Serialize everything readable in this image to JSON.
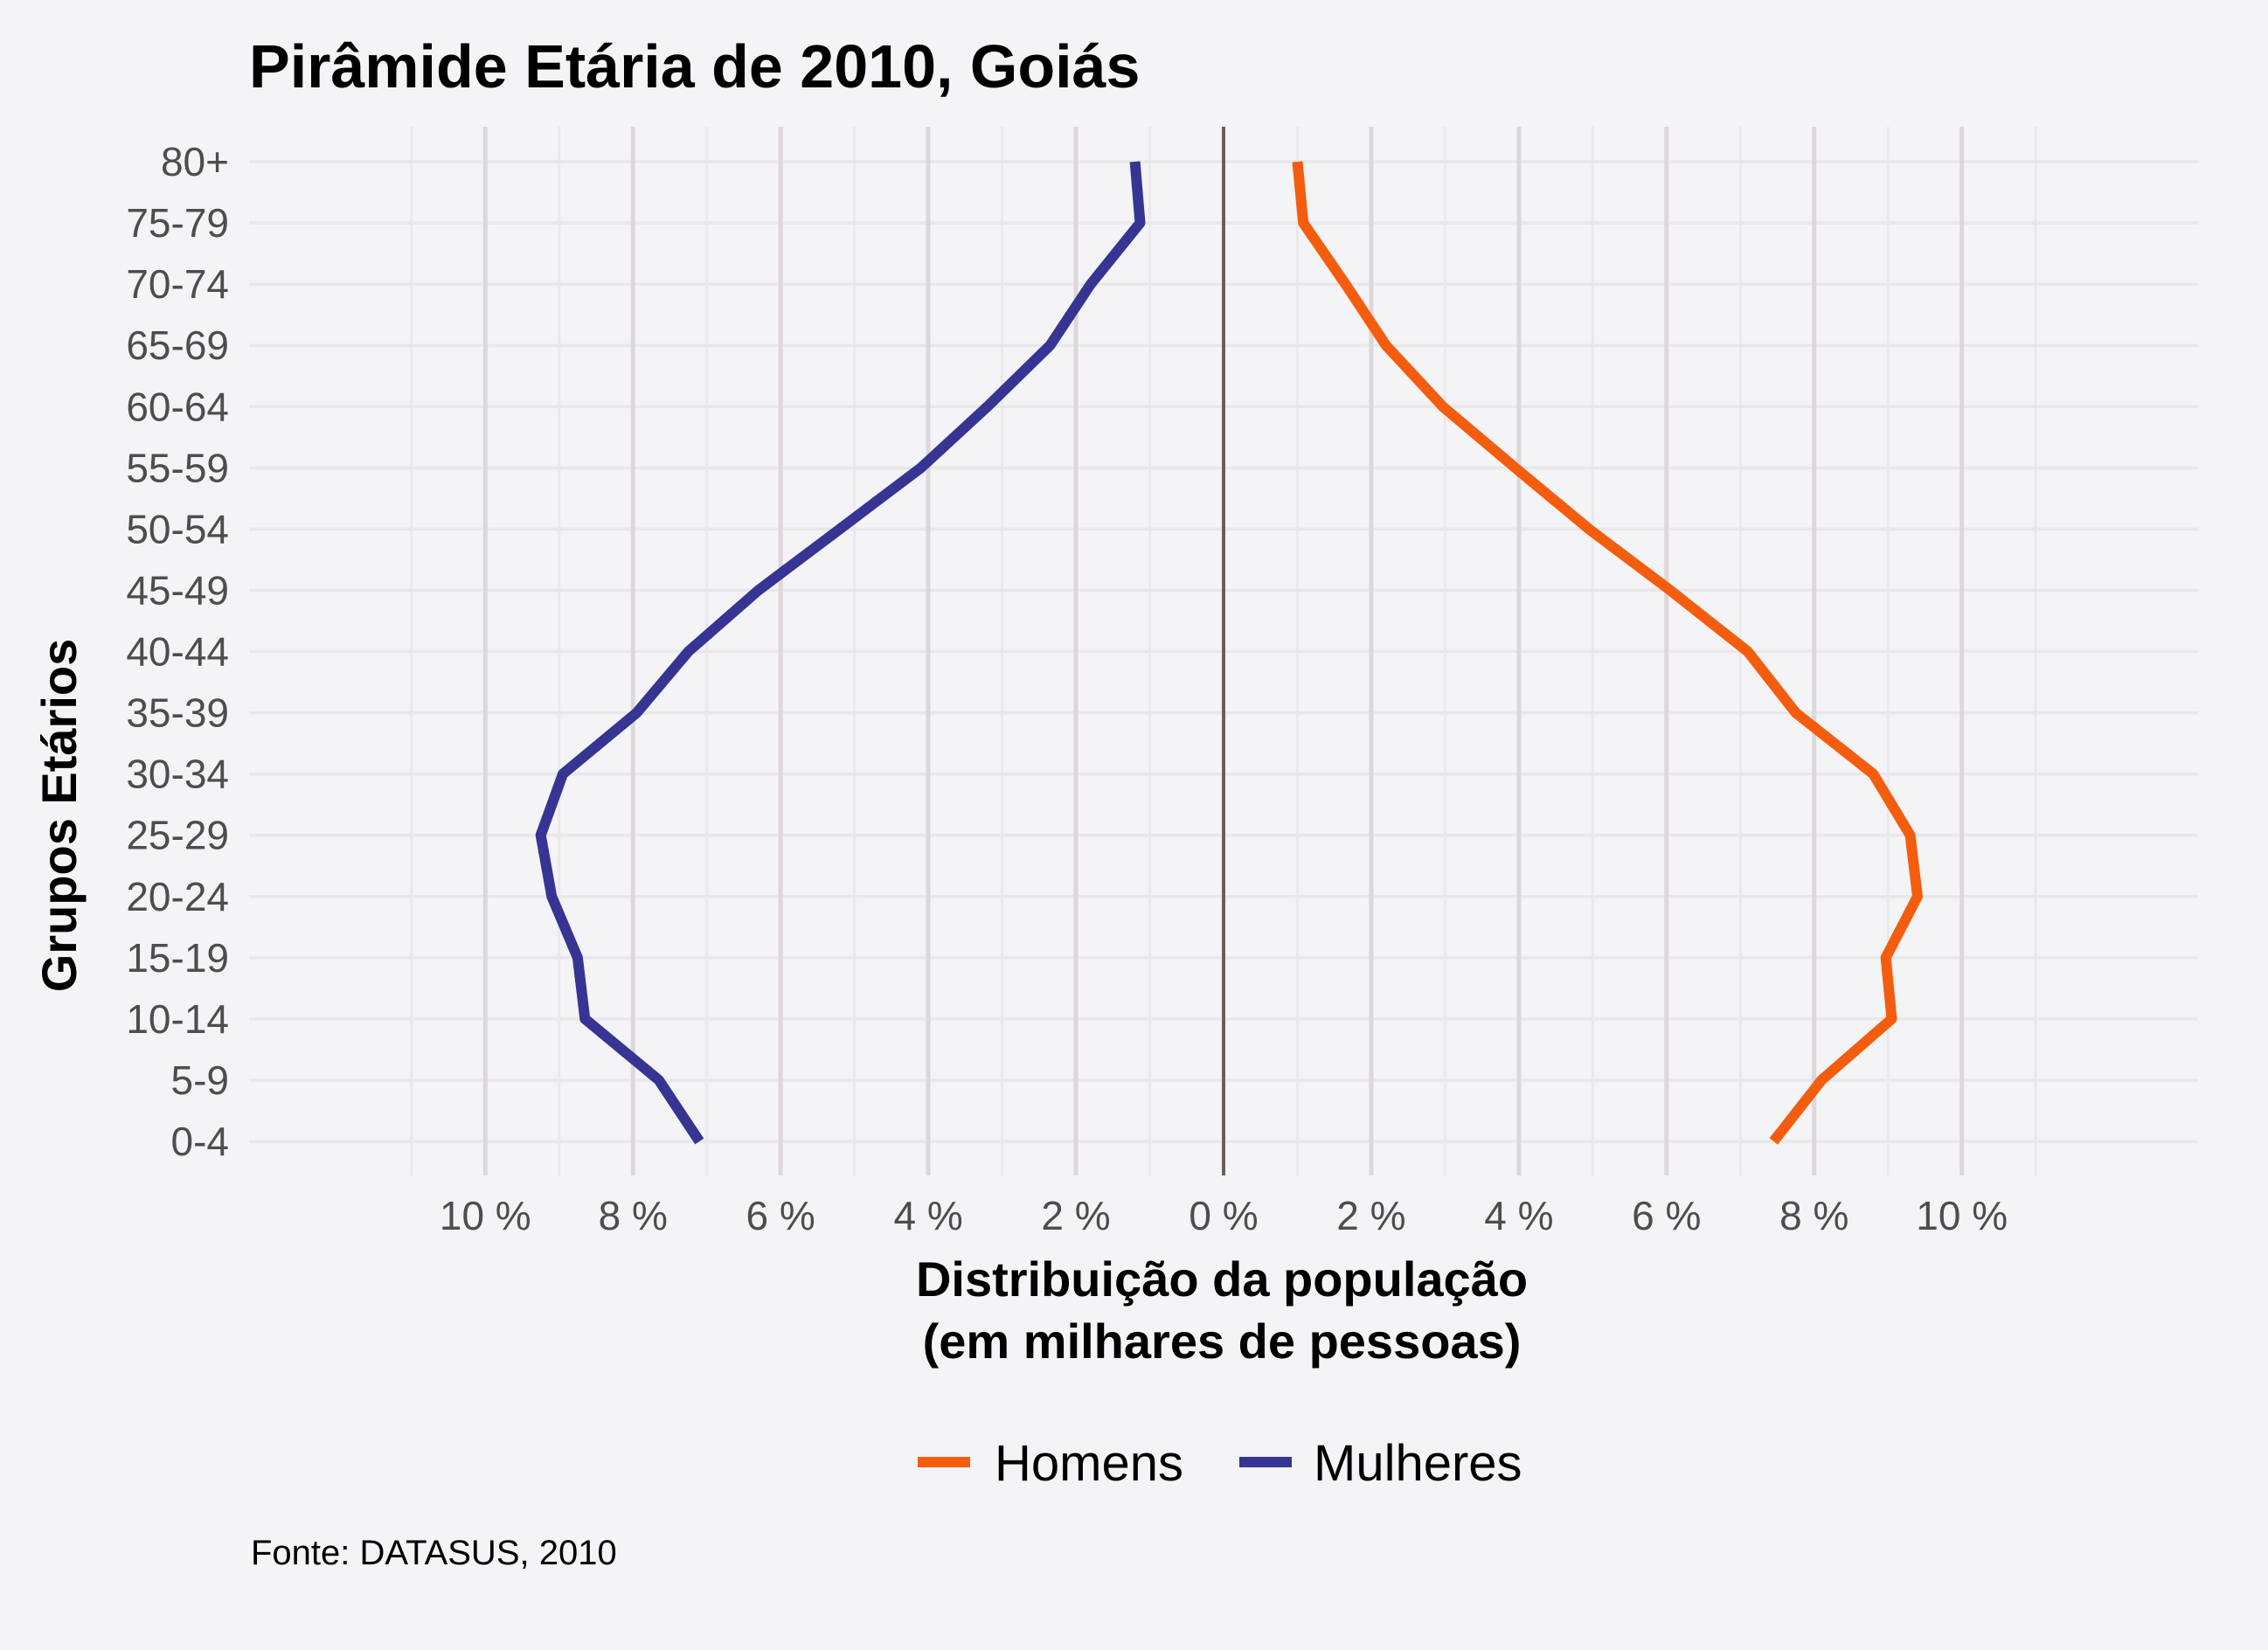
{
  "chart_data": {
    "type": "line",
    "title": "Pirâmide Etária de 2010, Goiás",
    "xlabel_line1": "Distribuição da população",
    "xlabel_line2": "(em milhares de pessoas)",
    "ylabel": "Grupos Etários",
    "caption": "Fonte: DATASUS, 2010",
    "categories": [
      "0-4",
      "5-9",
      "10-14",
      "15-19",
      "20-24",
      "25-29",
      "30-34",
      "35-39",
      "40-44",
      "45-49",
      "50-54",
      "55-59",
      "60-64",
      "65-69",
      "70-74",
      "75-79",
      "80+"
    ],
    "xlim": [
      -13.2,
      13.2
    ],
    "xticks": [
      -10,
      -8,
      -6,
      -4,
      -2,
      0,
      2,
      4,
      6,
      8,
      10
    ],
    "xtick_labels": [
      "10 %",
      "8 %",
      "6 %",
      "4 %",
      "2 %",
      "0 %",
      "2 %",
      "4 %",
      "6 %",
      "8 %",
      "10 %"
    ],
    "grid": true,
    "legend_position": "bottom",
    "series": [
      {
        "name": "Homens",
        "color": "#f45d0e",
        "values": [
          7.45,
          8.1,
          9.05,
          8.97,
          9.4,
          9.3,
          8.8,
          7.75,
          7.1,
          6.05,
          4.95,
          3.95,
          2.97,
          2.2,
          1.65,
          1.08,
          1.0
        ]
      },
      {
        "name": "Mulheres",
        "color": "#363593",
        "values": [
          -7.1,
          -7.65,
          -8.65,
          -8.75,
          -9.1,
          -9.25,
          -8.95,
          -7.95,
          -7.25,
          -6.3,
          -5.2,
          -4.1,
          -3.2,
          -2.35,
          -1.8,
          -1.13,
          -1.2
        ]
      }
    ]
  }
}
